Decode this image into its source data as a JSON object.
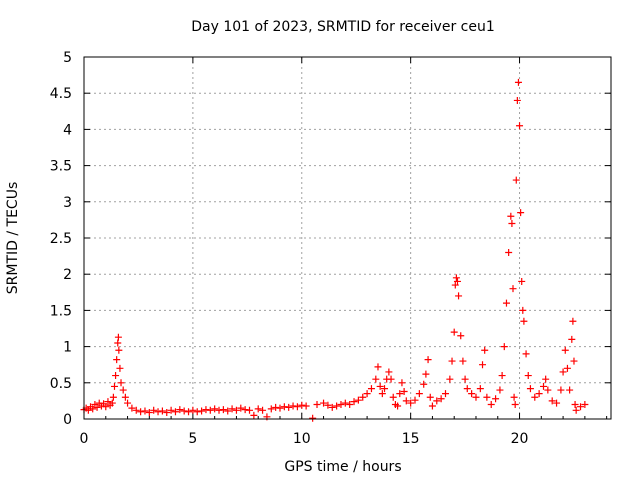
{
  "chart_data": {
    "type": "scatter",
    "title": "Day 101 of 2023, SRMTID for receiver ceu1",
    "xlabel": "GPS time / hours",
    "ylabel": "SRMTID / TECUs",
    "xlim": [
      0,
      24.2
    ],
    "ylim": [
      0,
      5
    ],
    "xticks": [
      0,
      5,
      10,
      15,
      20
    ],
    "xtick_labels": [
      "0",
      "5",
      "10",
      "15",
      "20"
    ],
    "yticks": [
      0,
      0.5,
      1,
      1.5,
      2,
      2.5,
      3,
      3.5,
      4,
      4.5,
      5
    ],
    "ytick_labels": [
      "0",
      "0.5",
      "1",
      "1.5",
      "2",
      "2.5",
      "3",
      "3.5",
      "4",
      "4.5",
      "5"
    ],
    "grid": true,
    "marker": "+",
    "series": [
      {
        "name": "SRMTID",
        "color": "#ff0000",
        "points": [
          [
            0.0,
            0.13
          ],
          [
            0.1,
            0.15
          ],
          [
            0.2,
            0.12
          ],
          [
            0.3,
            0.17
          ],
          [
            0.4,
            0.14
          ],
          [
            0.5,
            0.2
          ],
          [
            0.6,
            0.16
          ],
          [
            0.7,
            0.22
          ],
          [
            0.8,
            0.18
          ],
          [
            0.9,
            0.21
          ],
          [
            1.0,
            0.17
          ],
          [
            1.1,
            0.24
          ],
          [
            1.2,
            0.19
          ],
          [
            1.3,
            0.22
          ],
          [
            1.35,
            0.3
          ],
          [
            1.4,
            0.45
          ],
          [
            1.45,
            0.6
          ],
          [
            1.5,
            0.82
          ],
          [
            1.55,
            1.05
          ],
          [
            1.58,
            1.13
          ],
          [
            1.6,
            0.95
          ],
          [
            1.65,
            0.7
          ],
          [
            1.7,
            0.5
          ],
          [
            1.8,
            0.4
          ],
          [
            1.9,
            0.3
          ],
          [
            2.0,
            0.22
          ],
          [
            2.2,
            0.15
          ],
          [
            2.4,
            0.12
          ],
          [
            2.6,
            0.1
          ],
          [
            2.8,
            0.11
          ],
          [
            3.0,
            0.09
          ],
          [
            3.2,
            0.12
          ],
          [
            3.4,
            0.1
          ],
          [
            3.6,
            0.11
          ],
          [
            3.8,
            0.09
          ],
          [
            4.0,
            0.12
          ],
          [
            4.2,
            0.1
          ],
          [
            4.4,
            0.13
          ],
          [
            4.6,
            0.11
          ],
          [
            4.8,
            0.1
          ],
          [
            5.0,
            0.12
          ],
          [
            5.2,
            0.1
          ],
          [
            5.4,
            0.11
          ],
          [
            5.6,
            0.13
          ],
          [
            5.8,
            0.12
          ],
          [
            6.0,
            0.14
          ],
          [
            6.2,
            0.12
          ],
          [
            6.4,
            0.13
          ],
          [
            6.6,
            0.11
          ],
          [
            6.8,
            0.14
          ],
          [
            7.0,
            0.12
          ],
          [
            7.2,
            0.15
          ],
          [
            7.4,
            0.13
          ],
          [
            7.6,
            0.12
          ],
          [
            7.8,
            0.05
          ],
          [
            8.0,
            0.14
          ],
          [
            8.2,
            0.12
          ],
          [
            8.4,
            0.03
          ],
          [
            8.6,
            0.14
          ],
          [
            8.8,
            0.16
          ],
          [
            9.0,
            0.15
          ],
          [
            9.2,
            0.17
          ],
          [
            9.4,
            0.16
          ],
          [
            9.6,
            0.18
          ],
          [
            9.8,
            0.17
          ],
          [
            10.0,
            0.19
          ],
          [
            10.2,
            0.18
          ],
          [
            10.5,
            0.01
          ],
          [
            10.7,
            0.2
          ],
          [
            11.0,
            0.22
          ],
          [
            11.2,
            0.19
          ],
          [
            11.4,
            0.16
          ],
          [
            11.6,
            0.18
          ],
          [
            11.8,
            0.2
          ],
          [
            12.0,
            0.22
          ],
          [
            12.2,
            0.2
          ],
          [
            12.4,
            0.24
          ],
          [
            12.6,
            0.26
          ],
          [
            12.8,
            0.3
          ],
          [
            13.0,
            0.35
          ],
          [
            13.2,
            0.42
          ],
          [
            13.4,
            0.55
          ],
          [
            13.5,
            0.72
          ],
          [
            13.6,
            0.45
          ],
          [
            13.7,
            0.35
          ],
          [
            13.8,
            0.42
          ],
          [
            13.9,
            0.55
          ],
          [
            14.0,
            0.65
          ],
          [
            14.1,
            0.55
          ],
          [
            14.2,
            0.3
          ],
          [
            14.3,
            0.2
          ],
          [
            14.4,
            0.18
          ],
          [
            14.5,
            0.35
          ],
          [
            14.6,
            0.5
          ],
          [
            14.7,
            0.38
          ],
          [
            14.8,
            0.25
          ],
          [
            15.0,
            0.22
          ],
          [
            15.2,
            0.26
          ],
          [
            15.4,
            0.35
          ],
          [
            15.6,
            0.48
          ],
          [
            15.7,
            0.62
          ],
          [
            15.8,
            0.82
          ],
          [
            15.9,
            0.3
          ],
          [
            16.0,
            0.18
          ],
          [
            16.2,
            0.25
          ],
          [
            16.4,
            0.28
          ],
          [
            16.6,
            0.35
          ],
          [
            16.8,
            0.55
          ],
          [
            16.9,
            0.8
          ],
          [
            17.0,
            1.2
          ],
          [
            17.05,
            1.85
          ],
          [
            17.1,
            1.95
          ],
          [
            17.15,
            1.9
          ],
          [
            17.2,
            1.7
          ],
          [
            17.3,
            1.15
          ],
          [
            17.4,
            0.8
          ],
          [
            17.5,
            0.55
          ],
          [
            17.6,
            0.42
          ],
          [
            17.8,
            0.35
          ],
          [
            18.0,
            0.3
          ],
          [
            18.2,
            0.42
          ],
          [
            18.3,
            0.75
          ],
          [
            18.4,
            0.95
          ],
          [
            18.5,
            0.3
          ],
          [
            18.7,
            0.2
          ],
          [
            18.9,
            0.28
          ],
          [
            19.1,
            0.4
          ],
          [
            19.2,
            0.6
          ],
          [
            19.3,
            1.0
          ],
          [
            19.4,
            1.6
          ],
          [
            19.5,
            2.3
          ],
          [
            19.6,
            2.8
          ],
          [
            19.65,
            2.7
          ],
          [
            19.7,
            1.8
          ],
          [
            19.75,
            0.3
          ],
          [
            19.8,
            0.2
          ],
          [
            19.85,
            3.3
          ],
          [
            19.9,
            4.4
          ],
          [
            19.95,
            4.65
          ],
          [
            20.0,
            4.05
          ],
          [
            20.05,
            2.85
          ],
          [
            20.1,
            1.9
          ],
          [
            20.15,
            1.5
          ],
          [
            20.2,
            1.35
          ],
          [
            20.3,
            0.9
          ],
          [
            20.4,
            0.6
          ],
          [
            20.5,
            0.42
          ],
          [
            20.7,
            0.3
          ],
          [
            20.9,
            0.35
          ],
          [
            21.1,
            0.45
          ],
          [
            21.2,
            0.55
          ],
          [
            21.3,
            0.4
          ],
          [
            21.5,
            0.25
          ],
          [
            21.7,
            0.22
          ],
          [
            21.9,
            0.4
          ],
          [
            22.0,
            0.65
          ],
          [
            22.1,
            0.95
          ],
          [
            22.2,
            0.7
          ],
          [
            22.3,
            0.4
          ],
          [
            22.4,
            1.1
          ],
          [
            22.45,
            1.35
          ],
          [
            22.5,
            0.8
          ],
          [
            22.55,
            0.2
          ],
          [
            22.6,
            0.12
          ],
          [
            22.8,
            0.17
          ],
          [
            23.0,
            0.2
          ]
        ]
      }
    ]
  }
}
